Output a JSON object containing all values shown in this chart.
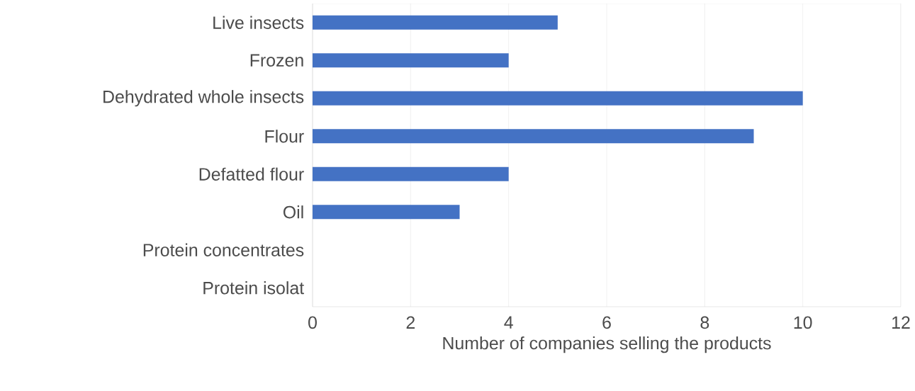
{
  "chart_data": {
    "type": "bar",
    "orientation": "horizontal",
    "xlabel": "Number of companies selling the products",
    "categories": [
      "Live insects",
      "Frozen",
      "Dehydrated whole insects",
      "Flour",
      "Defatted flour",
      "Oil",
      "Protein concentrates",
      "Protein isolat"
    ],
    "values": [
      5,
      4,
      10,
      9,
      4,
      3,
      0,
      0
    ],
    "color": "#4472c4",
    "xlim": [
      0,
      12
    ],
    "xticks": [
      0,
      2,
      4,
      6,
      8,
      10,
      12
    ],
    "grid": "x"
  }
}
